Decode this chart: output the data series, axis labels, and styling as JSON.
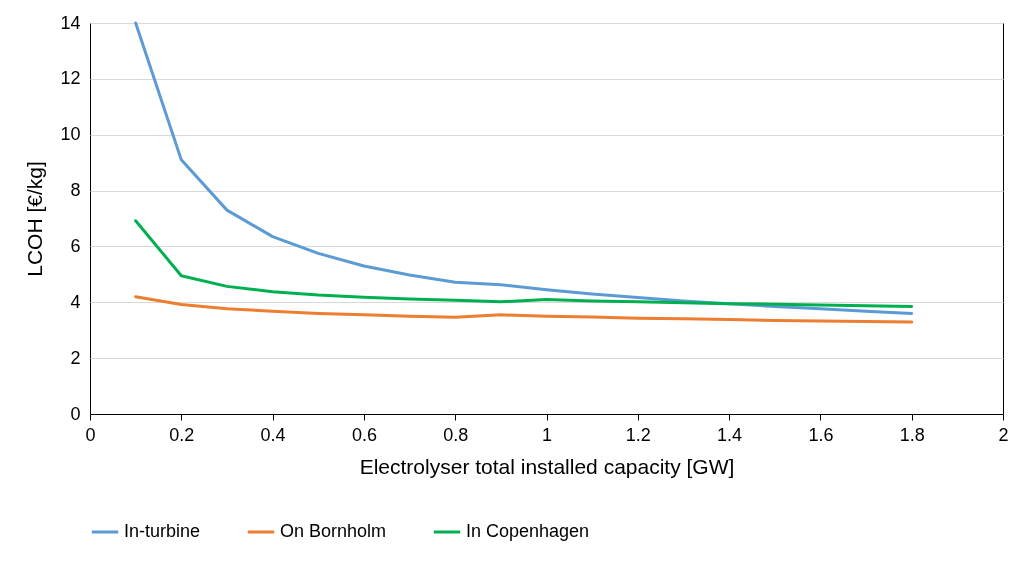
{
  "chart_data": {
    "type": "line",
    "xlabel": "Electrolyser total installed capacity [GW]",
    "ylabel": "LCOH [€/kg]",
    "x": [
      0.1,
      0.2,
      0.3,
      0.4,
      0.5,
      0.6,
      0.7,
      0.8,
      0.9,
      1.0,
      1.1,
      1.2,
      1.3,
      1.4,
      1.5,
      1.6,
      1.7,
      1.8
    ],
    "series": [
      {
        "name": "In-turbine",
        "color": "#5b9bd5",
        "values": [
          14.0,
          9.1,
          7.3,
          6.35,
          5.75,
          5.3,
          4.98,
          4.72,
          4.63,
          4.45,
          4.3,
          4.17,
          4.05,
          3.95,
          3.85,
          3.77,
          3.68,
          3.6
        ]
      },
      {
        "name": "On Bornholm",
        "color": "#ed7d31",
        "values": [
          4.2,
          3.92,
          3.77,
          3.68,
          3.6,
          3.55,
          3.5,
          3.46,
          3.55,
          3.5,
          3.47,
          3.43,
          3.41,
          3.38,
          3.35,
          3.33,
          3.31,
          3.29
        ]
      },
      {
        "name": "In Copenhagen",
        "color": "#00b050",
        "values": [
          6.92,
          4.95,
          4.57,
          4.38,
          4.26,
          4.18,
          4.12,
          4.07,
          4.02,
          4.1,
          4.05,
          4.02,
          3.98,
          3.95,
          3.93,
          3.9,
          3.88,
          3.85
        ]
      }
    ],
    "xlim": [
      0,
      2
    ],
    "xticks": [
      0,
      0.2,
      0.4,
      0.6,
      0.8,
      1,
      1.2,
      1.4,
      1.6,
      1.8,
      2
    ],
    "ylim": [
      0,
      14
    ],
    "yticks": [
      0,
      2,
      4,
      6,
      8,
      10,
      12,
      14
    ],
    "grid": "y",
    "legend": "bottom",
    "marker": "none",
    "line_style": "solid"
  }
}
